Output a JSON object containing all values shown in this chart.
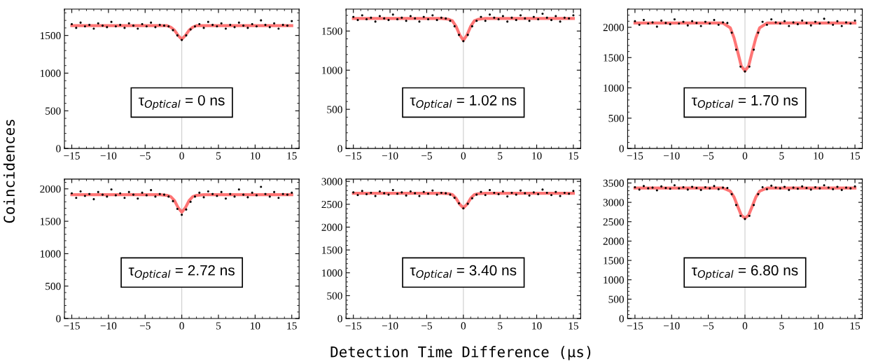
{
  "chart_data": [
    {
      "type": "scatter",
      "ylabel": "Coincidences",
      "xlim": [
        -16,
        16
      ],
      "xticks": [
        -15,
        -10,
        -5,
        0,
        5,
        10,
        15
      ],
      "ylim": [
        0,
        1850
      ],
      "yticks": [
        0,
        500,
        1000,
        1500
      ],
      "grid": false,
      "legend": false,
      "ref_lines": [
        {
          "axis": "x",
          "value": 0,
          "color": "#cccccc"
        }
      ],
      "annotations": [
        "τ$_{Optical}$ = 0 ns"
      ],
      "series": [
        {
          "marker": "circle",
          "color": "#000000",
          "x": [
            -15,
            -14.4,
            -13.8,
            -13.2,
            -12.6,
            -12,
            -11.4,
            -10.8,
            -10.2,
            -9.6,
            -9,
            -8.4,
            -7.8,
            -7.2,
            -6.6,
            -6,
            -5.4,
            -4.8,
            -4.2,
            -3.6,
            -3,
            -2.4,
            -1.8,
            -1.2,
            -0.6,
            0,
            0.6,
            1.2,
            1.8,
            2.4,
            3,
            3.6,
            4.2,
            4.8,
            5.4,
            6,
            6.6,
            7.2,
            7.8,
            8.4,
            9,
            9.6,
            10.2,
            10.8,
            11.4,
            12,
            12.6,
            13.2,
            13.8,
            14.4,
            15
          ],
          "values": [
            1650,
            1600,
            1670,
            1620,
            1640,
            1590,
            1660,
            1630,
            1610,
            1680,
            1620,
            1640,
            1600,
            1660,
            1630,
            1590,
            1650,
            1620,
            1670,
            1610,
            1640,
            1630,
            1620,
            1570,
            1500,
            1440,
            1500,
            1580,
            1620,
            1650,
            1600,
            1680,
            1640,
            1620,
            1660,
            1590,
            1640,
            1610,
            1670,
            1630,
            1600,
            1650,
            1620,
            1700,
            1640,
            1610,
            1660,
            1590,
            1640,
            1630,
            1690
          ]
        },
        {
          "type": "line",
          "color": "#ff6666",
          "x": [
            -15,
            -3,
            -2,
            -1.5,
            -1,
            -0.5,
            0,
            0.5,
            1,
            1.5,
            2,
            3,
            15
          ],
          "values": [
            1630,
            1630,
            1630,
            1610,
            1570,
            1500,
            1450,
            1500,
            1570,
            1610,
            1630,
            1630,
            1630
          ]
        }
      ]
    },
    {
      "type": "scatter",
      "xlim": [
        -16,
        16
      ],
      "xticks": [
        -15,
        -10,
        -5,
        0,
        5,
        10,
        15
      ],
      "ylim": [
        0,
        1780
      ],
      "yticks": [
        0,
        500,
        1000,
        1500
      ],
      "grid": false,
      "legend": false,
      "ref_lines": [
        {
          "axis": "x",
          "value": 0,
          "color": "#cccccc"
        }
      ],
      "annotations": [
        "τ$_{Optical}$ = 1.02 ns"
      ],
      "series": [
        {
          "marker": "circle",
          "color": "#000000",
          "x": [
            -15,
            -14.4,
            -13.8,
            -13.2,
            -12.6,
            -12,
            -11.4,
            -10.8,
            -10.2,
            -9.6,
            -9,
            -8.4,
            -7.8,
            -7.2,
            -6.6,
            -6,
            -5.4,
            -4.8,
            -4.2,
            -3.6,
            -3,
            -2.4,
            -1.8,
            -1.2,
            -0.6,
            0,
            0.6,
            1.2,
            1.8,
            2.4,
            3,
            3.6,
            4.2,
            4.8,
            5.4,
            6,
            6.6,
            7.2,
            7.8,
            8.4,
            9,
            9.6,
            10.2,
            10.8,
            11.4,
            12,
            12.6,
            13.2,
            13.8,
            14.4,
            15
          ],
          "values": [
            1680,
            1640,
            1700,
            1650,
            1670,
            1620,
            1690,
            1660,
            1640,
            1710,
            1650,
            1670,
            1630,
            1690,
            1660,
            1620,
            1680,
            1650,
            1700,
            1640,
            1670,
            1660,
            1630,
            1560,
            1450,
            1370,
            1450,
            1560,
            1630,
            1680,
            1630,
            1710,
            1670,
            1650,
            1690,
            1620,
            1670,
            1640,
            1700,
            1660,
            1630,
            1680,
            1650,
            1720,
            1670,
            1640,
            1690,
            1620,
            1670,
            1660,
            1700
          ]
        },
        {
          "type": "line",
          "color": "#ff6666",
          "x": [
            -15,
            -3,
            -2,
            -1.5,
            -1,
            -0.5,
            0,
            0.5,
            1,
            1.5,
            2,
            3,
            15
          ],
          "values": [
            1660,
            1660,
            1650,
            1630,
            1560,
            1450,
            1380,
            1450,
            1560,
            1630,
            1650,
            1660,
            1660
          ]
        }
      ]
    },
    {
      "type": "scatter",
      "xlim": [
        -16,
        16
      ],
      "xticks": [
        -15,
        -10,
        -5,
        0,
        5,
        10,
        15
      ],
      "ylim": [
        0,
        2300
      ],
      "yticks": [
        0,
        500,
        1000,
        1500,
        2000
      ],
      "grid": false,
      "legend": false,
      "ref_lines": [
        {
          "axis": "x",
          "value": 0,
          "color": "#cccccc"
        }
      ],
      "annotations": [
        "τ$_{Optical}$ = 1.70 ns"
      ],
      "series": [
        {
          "marker": "circle",
          "color": "#000000",
          "x": [
            -15,
            -14.4,
            -13.8,
            -13.2,
            -12.6,
            -12,
            -11.4,
            -10.8,
            -10.2,
            -9.6,
            -9,
            -8.4,
            -7.8,
            -7.2,
            -6.6,
            -6,
            -5.4,
            -4.8,
            -4.2,
            -3.6,
            -3,
            -2.4,
            -1.8,
            -1.2,
            -0.6,
            0,
            0.6,
            1.2,
            1.8,
            2.4,
            3,
            3.6,
            4.2,
            4.8,
            5.4,
            6,
            6.6,
            7.2,
            7.8,
            8.4,
            9,
            9.6,
            10.2,
            10.8,
            11.4,
            12,
            12.6,
            13.2,
            13.8,
            14.4,
            15
          ],
          "values": [
            2100,
            2040,
            2120,
            2060,
            2080,
            2010,
            2110,
            2070,
            2050,
            2130,
            2060,
            2090,
            2030,
            2100,
            2070,
            2020,
            2090,
            2060,
            2120,
            2040,
            2080,
            2070,
            1910,
            1630,
            1350,
            1270,
            1350,
            1630,
            1910,
            2090,
            2040,
            2130,
            2080,
            2060,
            2100,
            2020,
            2080,
            2050,
            2110,
            2070,
            2030,
            2090,
            2060,
            2140,
            2080,
            2040,
            2100,
            2020,
            2080,
            2060,
            2110
          ]
        },
        {
          "type": "line",
          "color": "#ff6666",
          "x": [
            -15,
            -3,
            -2,
            -1.5,
            -1,
            -0.5,
            0,
            0.5,
            1,
            1.5,
            2,
            3,
            15
          ],
          "values": [
            2070,
            2070,
            1990,
            1830,
            1600,
            1360,
            1280,
            1360,
            1600,
            1830,
            1990,
            2070,
            2070
          ]
        }
      ]
    },
    {
      "type": "scatter",
      "xlim": [
        -16,
        16
      ],
      "xticks": [
        -15,
        -10,
        -5,
        0,
        5,
        10,
        15
      ],
      "ylim": [
        0,
        2150
      ],
      "yticks": [
        0,
        500,
        1000,
        1500,
        2000
      ],
      "grid": false,
      "legend": false,
      "ref_lines": [
        {
          "axis": "x",
          "value": 0,
          "color": "#cccccc"
        }
      ],
      "annotations": [
        "τ$_{Optical}$ = 2.72 ns"
      ],
      "series": [
        {
          "marker": "circle",
          "color": "#000000",
          "x": [
            -15,
            -14.4,
            -13.8,
            -13.2,
            -12.6,
            -12,
            -11.4,
            -10.8,
            -10.2,
            -9.6,
            -9,
            -8.4,
            -7.8,
            -7.2,
            -6.6,
            -6,
            -5.4,
            -4.8,
            -4.2,
            -3.6,
            -3,
            -2.4,
            -1.8,
            -1.2,
            -0.6,
            0,
            0.6,
            1.2,
            1.8,
            2.4,
            3,
            3.6,
            4.2,
            4.8,
            5.4,
            6,
            6.6,
            7.2,
            7.8,
            8.4,
            9,
            9.6,
            10.2,
            10.8,
            11.4,
            12,
            12.6,
            13.2,
            13.8,
            14.4,
            15
          ],
          "values": [
            1930,
            1860,
            1960,
            1890,
            1920,
            1840,
            1950,
            1910,
            1880,
            1990,
            1900,
            1930,
            1860,
            1950,
            1910,
            1850,
            1940,
            1900,
            1980,
            1880,
            1920,
            1910,
            1880,
            1810,
            1690,
            1600,
            1680,
            1800,
            1880,
            1940,
            1870,
            1960,
            1920,
            1890,
            1950,
            1850,
            1920,
            1880,
            1990,
            1910,
            1870,
            1940,
            1900,
            2030,
            1920,
            1880,
            1950,
            1860,
            1920,
            1910,
            1940
          ]
        },
        {
          "type": "line",
          "color": "#ff6666",
          "x": [
            -15,
            -3,
            -2,
            -1.5,
            -1,
            -0.5,
            0,
            0.5,
            1,
            1.5,
            2,
            3,
            15
          ],
          "values": [
            1910,
            1910,
            1900,
            1880,
            1820,
            1710,
            1640,
            1710,
            1820,
            1880,
            1900,
            1910,
            1910
          ]
        }
      ]
    },
    {
      "type": "scatter",
      "xlabel": "Detection Time Difference (μs)",
      "xlim": [
        -16,
        16
      ],
      "xticks": [
        -15,
        -10,
        -5,
        0,
        5,
        10,
        15
      ],
      "ylim": [
        0,
        3050
      ],
      "yticks": [
        0,
        500,
        1000,
        1500,
        2000,
        2500,
        3000
      ],
      "grid": false,
      "legend": false,
      "ref_lines": [
        {
          "axis": "x",
          "value": 0,
          "color": "#cccccc"
        }
      ],
      "annotations": [
        "τ$_{Optical}$ = 3.40 ns"
      ],
      "series": [
        {
          "marker": "circle",
          "color": "#000000",
          "x": [
            -15,
            -14.4,
            -13.8,
            -13.2,
            -12.6,
            -12,
            -11.4,
            -10.8,
            -10.2,
            -9.6,
            -9,
            -8.4,
            -7.8,
            -7.2,
            -6.6,
            -6,
            -5.4,
            -4.8,
            -4.2,
            -3.6,
            -3,
            -2.4,
            -1.8,
            -1.2,
            -0.6,
            0,
            0.6,
            1.2,
            1.8,
            2.4,
            3,
            3.6,
            4.2,
            4.8,
            5.4,
            6,
            6.6,
            7.2,
            7.8,
            8.4,
            9,
            9.6,
            10.2,
            10.8,
            11.4,
            12,
            12.6,
            13.2,
            13.8,
            14.4,
            15
          ],
          "values": [
            2760,
            2700,
            2790,
            2720,
            2750,
            2680,
            2780,
            2740,
            2710,
            2810,
            2730,
            2760,
            2690,
            2780,
            2740,
            2680,
            2770,
            2730,
            2800,
            2710,
            2750,
            2740,
            2710,
            2640,
            2520,
            2410,
            2510,
            2630,
            2710,
            2770,
            2700,
            2810,
            2750,
            2720,
            2780,
            2670,
            2750,
            2710,
            2800,
            2740,
            2690,
            2760,
            2720,
            2820,
            2750,
            2700,
            2770,
            2680,
            2750,
            2730,
            2790
          ]
        },
        {
          "type": "line",
          "color": "#ff6666",
          "x": [
            -15,
            -3,
            -2,
            -1.5,
            -1,
            -0.5,
            0,
            0.5,
            1,
            1.5,
            2,
            3,
            15
          ],
          "values": [
            2740,
            2740,
            2730,
            2710,
            2630,
            2500,
            2420,
            2500,
            2630,
            2710,
            2730,
            2740,
            2740
          ]
        }
      ]
    },
    {
      "type": "scatter",
      "xlim": [
        -16,
        16
      ],
      "xticks": [
        -15,
        -10,
        -5,
        0,
        5,
        10,
        15
      ],
      "ylim": [
        0,
        3600
      ],
      "yticks": [
        0,
        500,
        1000,
        1500,
        2000,
        2500,
        3000,
        3500
      ],
      "grid": false,
      "legend": false,
      "ref_lines": [
        {
          "axis": "x",
          "value": 0,
          "color": "#cccccc"
        }
      ],
      "annotations": [
        "τ$_{Optical}$ = 6.80 ns"
      ],
      "series": [
        {
          "marker": "circle",
          "color": "#000000",
          "x": [
            -15,
            -14.4,
            -13.8,
            -13.2,
            -12.6,
            -12,
            -11.4,
            -10.8,
            -10.2,
            -9.6,
            -9,
            -8.4,
            -7.8,
            -7.2,
            -6.6,
            -6,
            -5.4,
            -4.8,
            -4.2,
            -3.6,
            -3,
            -2.4,
            -1.8,
            -1.2,
            -0.6,
            0,
            0.6,
            1.2,
            1.8,
            2.4,
            3,
            3.6,
            4.2,
            4.8,
            5.4,
            6,
            6.6,
            7.2,
            7.8,
            8.4,
            9,
            9.6,
            10.2,
            10.8,
            11.4,
            12,
            12.6,
            13.2,
            13.8,
            14.4,
            15
          ],
          "values": [
            3390,
            3330,
            3420,
            3360,
            3380,
            3310,
            3410,
            3370,
            3350,
            3440,
            3360,
            3390,
            3330,
            3400,
            3370,
            3320,
            3390,
            3360,
            3420,
            3340,
            3380,
            3370,
            3210,
            2930,
            2650,
            2570,
            2650,
            2930,
            3210,
            3390,
            3340,
            3430,
            3380,
            3360,
            3400,
            3320,
            3380,
            3350,
            3410,
            3370,
            3330,
            3390,
            3360,
            3440,
            3380,
            3340,
            3400,
            3320,
            3380,
            3360,
            3410
          ]
        },
        {
          "type": "line",
          "color": "#ff6666",
          "x": [
            -15,
            -3,
            -2,
            -1.5,
            -1,
            -0.5,
            0,
            0.5,
            1,
            1.5,
            2,
            3,
            15
          ],
          "values": [
            3370,
            3370,
            3290,
            3140,
            2900,
            2670,
            2590,
            2670,
            2900,
            3140,
            3290,
            3370,
            3370
          ]
        }
      ]
    }
  ]
}
